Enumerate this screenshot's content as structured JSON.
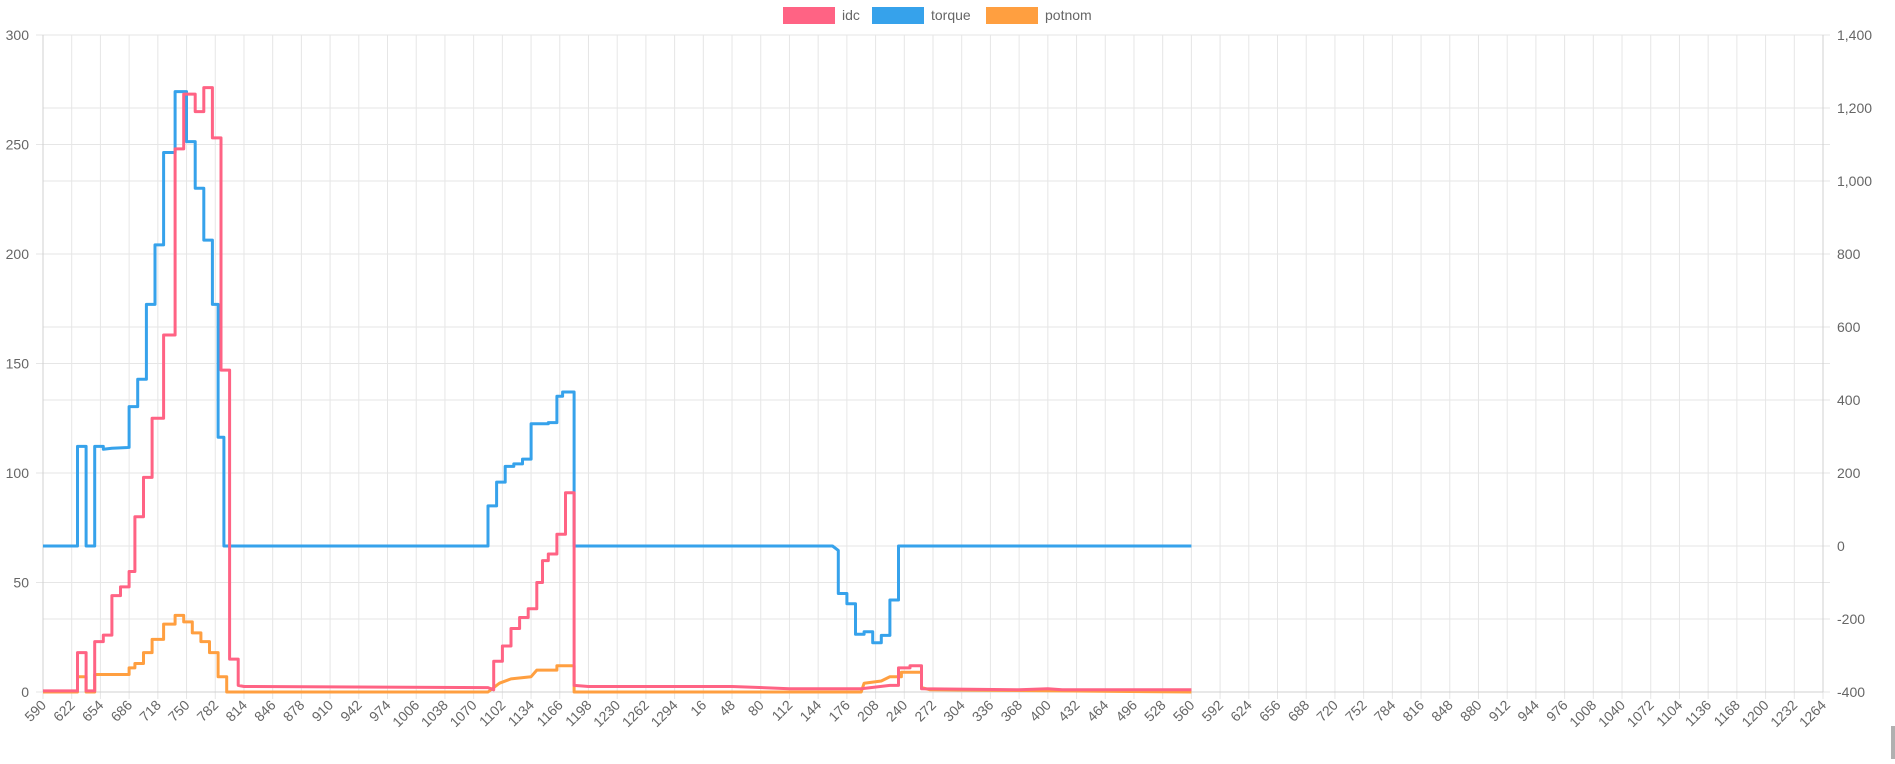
{
  "chart_data": {
    "type": "line",
    "title": "",
    "legend": {
      "position": "top",
      "items": [
        "idc",
        "torque",
        "potnom"
      ]
    },
    "colors": {
      "idc": "#ff6384",
      "torque": "#36a2eb",
      "potnom": "#ff9f40",
      "grid": "#e6e6e6",
      "axis_text": "#666666"
    },
    "grid": true,
    "x_tick_labels": [
      "590",
      "622",
      "654",
      "686",
      "718",
      "750",
      "782",
      "814",
      "846",
      "878",
      "910",
      "942",
      "974",
      "1006",
      "1038",
      "1070",
      "1102",
      "1134",
      "1166",
      "1198",
      "1230",
      "1262",
      "1294",
      "16",
      "48",
      "80",
      "112",
      "144",
      "176",
      "208",
      "240",
      "272",
      "304",
      "336",
      "368",
      "400",
      "432",
      "464",
      "496",
      "528",
      "560",
      "592",
      "624",
      "656",
      "688",
      "720",
      "752",
      "784",
      "816",
      "848",
      "880",
      "912",
      "944",
      "976",
      "1008",
      "1040",
      "1072",
      "1104",
      "1136",
      "1168",
      "1200",
      "1232",
      "1264"
    ],
    "y_left": {
      "ylim": [
        0,
        300
      ],
      "ticks": [
        0,
        50,
        100,
        150,
        200,
        250,
        300
      ],
      "tick_labels": [
        "0",
        "50",
        "100",
        "150",
        "200",
        "250",
        "300"
      ]
    },
    "y_right": {
      "ylim": [
        -400,
        1400
      ],
      "ticks": [
        -400,
        -200,
        0,
        200,
        400,
        600,
        800,
        1000,
        1200,
        1400
      ],
      "tick_labels": [
        "-400",
        "-200",
        "0",
        "200",
        "400",
        "600",
        "800",
        "1,000",
        "1,200",
        "1,400"
      ]
    },
    "series": [
      {
        "name": "idc",
        "axis": "left",
        "points": [
          [
            0,
            0.5
          ],
          [
            1.2,
            0.5
          ],
          [
            1.2,
            18
          ],
          [
            1.5,
            18
          ],
          [
            1.5,
            0.5
          ],
          [
            1.8,
            0.5
          ],
          [
            1.8,
            23
          ],
          [
            2.1,
            23
          ],
          [
            2.1,
            26
          ],
          [
            2.4,
            26
          ],
          [
            2.4,
            44
          ],
          [
            2.7,
            44
          ],
          [
            2.7,
            48
          ],
          [
            3.0,
            48
          ],
          [
            3.0,
            55
          ],
          [
            3.2,
            55
          ],
          [
            3.2,
            80
          ],
          [
            3.5,
            80
          ],
          [
            3.5,
            98
          ],
          [
            3.8,
            98
          ],
          [
            3.8,
            125
          ],
          [
            4.2,
            125
          ],
          [
            4.2,
            163
          ],
          [
            4.6,
            163
          ],
          [
            4.6,
            248
          ],
          [
            4.9,
            248
          ],
          [
            4.9,
            273
          ],
          [
            5.3,
            273
          ],
          [
            5.3,
            265
          ],
          [
            5.6,
            265
          ],
          [
            5.6,
            276
          ],
          [
            5.9,
            276
          ],
          [
            5.9,
            253
          ],
          [
            6.2,
            253
          ],
          [
            6.2,
            147
          ],
          [
            6.5,
            147
          ],
          [
            6.5,
            15
          ],
          [
            6.8,
            15
          ],
          [
            6.8,
            3
          ],
          [
            7,
            2.5
          ],
          [
            15.5,
            2
          ],
          [
            15.7,
            1
          ],
          [
            15.7,
            14
          ],
          [
            16.0,
            14
          ],
          [
            16.0,
            21
          ],
          [
            16.3,
            21
          ],
          [
            16.3,
            29
          ],
          [
            16.6,
            29
          ],
          [
            16.6,
            34
          ],
          [
            16.9,
            34
          ],
          [
            16.9,
            38
          ],
          [
            17.2,
            38
          ],
          [
            17.2,
            50
          ],
          [
            17.4,
            50
          ],
          [
            17.4,
            60
          ],
          [
            17.6,
            60
          ],
          [
            17.6,
            63
          ],
          [
            17.9,
            63
          ],
          [
            17.9,
            72
          ],
          [
            18.2,
            72
          ],
          [
            18.2,
            91
          ],
          [
            18.5,
            91
          ],
          [
            18.5,
            3
          ],
          [
            19,
            2.5
          ],
          [
            24,
            2.5
          ],
          [
            26,
            1.5
          ],
          [
            28.5,
            1.5
          ],
          [
            29.5,
            3
          ],
          [
            29.8,
            3
          ],
          [
            29.8,
            11
          ],
          [
            30.2,
            11
          ],
          [
            30.2,
            12
          ],
          [
            30.6,
            12
          ],
          [
            30.6,
            1.5
          ],
          [
            34,
            1
          ],
          [
            35,
            1.5
          ],
          [
            35.5,
            1
          ],
          [
            40,
            1
          ]
        ]
      },
      {
        "name": "torque",
        "axis": "right",
        "points": [
          [
            0,
            0
          ],
          [
            1.2,
            0
          ],
          [
            1.2,
            273
          ],
          [
            1.5,
            273
          ],
          [
            1.5,
            0
          ],
          [
            1.8,
            0
          ],
          [
            1.8,
            273
          ],
          [
            2.1,
            273
          ],
          [
            2.1,
            265
          ],
          [
            2.4,
            268
          ],
          [
            3.0,
            270
          ],
          [
            3.0,
            382
          ],
          [
            3.3,
            382
          ],
          [
            3.3,
            457
          ],
          [
            3.6,
            457
          ],
          [
            3.6,
            662
          ],
          [
            3.9,
            662
          ],
          [
            3.9,
            825
          ],
          [
            4.2,
            825
          ],
          [
            4.2,
            1078
          ],
          [
            4.6,
            1078
          ],
          [
            4.6,
            1245
          ],
          [
            5.0,
            1245
          ],
          [
            5.0,
            1108
          ],
          [
            5.3,
            1108
          ],
          [
            5.3,
            980
          ],
          [
            5.6,
            980
          ],
          [
            5.6,
            838
          ],
          [
            5.9,
            838
          ],
          [
            5.9,
            662
          ],
          [
            6.1,
            662
          ],
          [
            6.1,
            298
          ],
          [
            6.3,
            298
          ],
          [
            6.3,
            0
          ],
          [
            15.5,
            0
          ],
          [
            15.5,
            110
          ],
          [
            15.8,
            110
          ],
          [
            15.8,
            175
          ],
          [
            16.1,
            175
          ],
          [
            16.1,
            218
          ],
          [
            16.4,
            218
          ],
          [
            16.4,
            225
          ],
          [
            16.7,
            225
          ],
          [
            16.7,
            238
          ],
          [
            17.0,
            238
          ],
          [
            17.0,
            335
          ],
          [
            17.6,
            335
          ],
          [
            17.6,
            338
          ],
          [
            17.9,
            338
          ],
          [
            17.9,
            410
          ],
          [
            18.1,
            410
          ],
          [
            18.1,
            422
          ],
          [
            18.5,
            422
          ],
          [
            18.5,
            0
          ],
          [
            27.5,
            0
          ],
          [
            27.7,
            -12
          ],
          [
            27.7,
            -130
          ],
          [
            28.0,
            -130
          ],
          [
            28.0,
            -158
          ],
          [
            28.3,
            -158
          ],
          [
            28.3,
            -242
          ],
          [
            28.6,
            -242
          ],
          [
            28.6,
            -235
          ],
          [
            28.9,
            -235
          ],
          [
            28.9,
            -265
          ],
          [
            29.2,
            -265
          ],
          [
            29.2,
            -245
          ],
          [
            29.5,
            -245
          ],
          [
            29.5,
            -148
          ],
          [
            29.8,
            -148
          ],
          [
            29.8,
            0
          ],
          [
            40,
            0
          ]
        ]
      },
      {
        "name": "potnom",
        "axis": "left",
        "points": [
          [
            0,
            0
          ],
          [
            1.2,
            0
          ],
          [
            1.2,
            7
          ],
          [
            1.5,
            7
          ],
          [
            1.5,
            0
          ],
          [
            1.8,
            0
          ],
          [
            1.8,
            8
          ],
          [
            3.0,
            8
          ],
          [
            3.0,
            11
          ],
          [
            3.2,
            11
          ],
          [
            3.2,
            13
          ],
          [
            3.5,
            13
          ],
          [
            3.5,
            18
          ],
          [
            3.8,
            18
          ],
          [
            3.8,
            24
          ],
          [
            4.2,
            24
          ],
          [
            4.2,
            31
          ],
          [
            4.6,
            31
          ],
          [
            4.6,
            35
          ],
          [
            4.9,
            35
          ],
          [
            4.9,
            32
          ],
          [
            5.2,
            32
          ],
          [
            5.2,
            27
          ],
          [
            5.5,
            27
          ],
          [
            5.5,
            23
          ],
          [
            5.8,
            23
          ],
          [
            5.8,
            18
          ],
          [
            6.1,
            18
          ],
          [
            6.1,
            7
          ],
          [
            6.4,
            7
          ],
          [
            6.4,
            0
          ],
          [
            15.5,
            0
          ],
          [
            15.7,
            2
          ],
          [
            15.9,
            4
          ],
          [
            16.3,
            6
          ],
          [
            17.0,
            7
          ],
          [
            17.2,
            10
          ],
          [
            17.9,
            10
          ],
          [
            17.9,
            12
          ],
          [
            18.5,
            12
          ],
          [
            18.5,
            0
          ],
          [
            28.5,
            0
          ],
          [
            28.6,
            4
          ],
          [
            29.2,
            5
          ],
          [
            29.5,
            7
          ],
          [
            29.9,
            7
          ],
          [
            29.9,
            9
          ],
          [
            30.6,
            9
          ],
          [
            30.6,
            2
          ],
          [
            30.9,
            1
          ],
          [
            40,
            0
          ]
        ]
      }
    ]
  }
}
